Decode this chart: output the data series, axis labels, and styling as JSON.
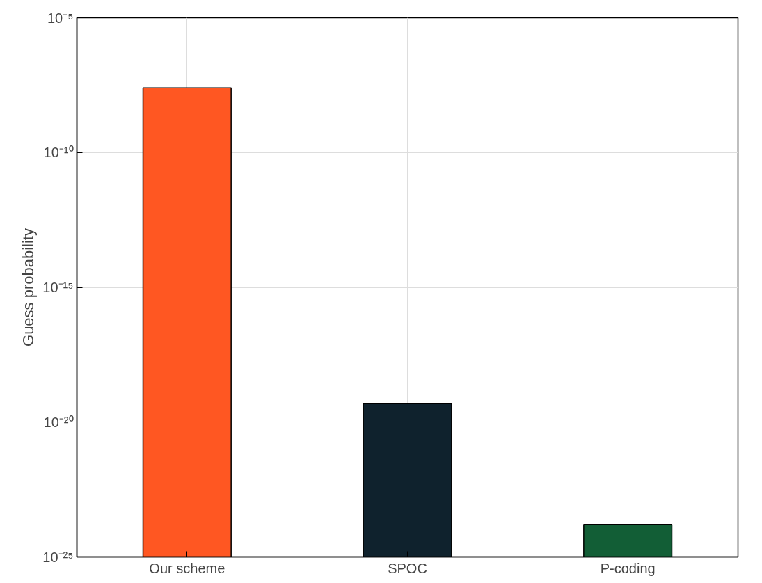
{
  "chart_data": {
    "type": "bar",
    "ylabel": "Guess probability",
    "categories": [
      "Our scheme",
      "SPOC",
      "P-coding"
    ],
    "values": [
      2.5e-08,
      5e-20,
      1.6e-24
    ],
    "colors": [
      "#ff5722",
      "#0f222d",
      "#125e36"
    ],
    "log": true,
    "ylim": [
      1e-25,
      1e-05
    ],
    "yticks": [
      {
        "value": 1e-25,
        "label": "10⁻²⁵"
      },
      {
        "value": 1e-20,
        "label": "10⁻²⁰"
      },
      {
        "value": 1e-15,
        "label": "10⁻¹⁵"
      },
      {
        "value": 1e-10,
        "label": "10⁻¹⁰"
      },
      {
        "value": 1e-05,
        "label": "10⁻⁵"
      }
    ],
    "grid": true
  }
}
